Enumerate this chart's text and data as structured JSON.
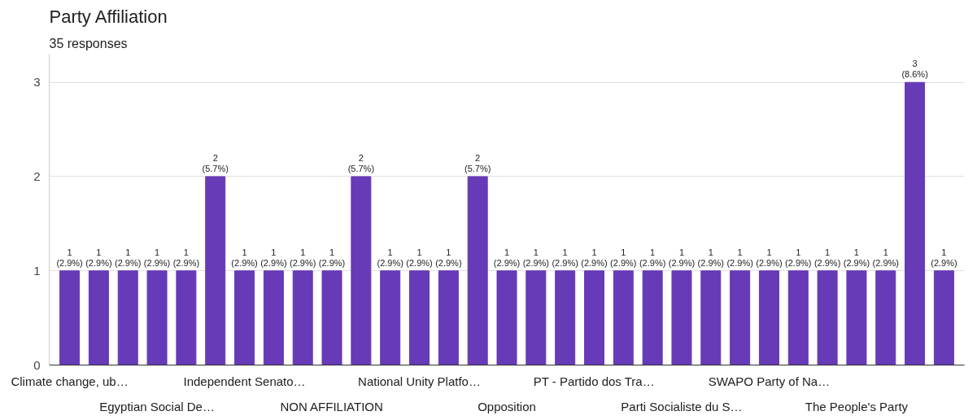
{
  "chart_data": {
    "type": "bar",
    "title": "Party Affiliation",
    "subtitle": "35 responses",
    "categories": [
      "Climate change, ub…",
      null,
      null,
      "Egyptian Social De…",
      null,
      null,
      "Independent Senato…",
      null,
      null,
      "NON AFFILIATION",
      null,
      null,
      "National Unity Platfo…",
      null,
      null,
      "Opposition",
      null,
      null,
      "PT - Partido dos Tra…",
      null,
      null,
      "Parti Socialiste du S…",
      null,
      null,
      "SWAPO Party of Na…",
      null,
      null,
      "The People's Party",
      null,
      null,
      null
    ],
    "values": [
      1,
      1,
      1,
      1,
      1,
      2,
      1,
      1,
      1,
      1,
      2,
      1,
      1,
      1,
      2,
      1,
      1,
      1,
      1,
      1,
      1,
      1,
      1,
      1,
      1,
      1,
      1,
      1,
      1,
      3,
      1
    ],
    "value_labels": [
      "1 (2.9%)",
      "1 (2.9%)",
      "1 (2.9%)",
      "1 (2.9%)",
      "1 (2.9%)",
      "2 (5.7%)",
      "1 (2.9%)",
      "1 (2.9%)",
      "1 (2.9%)",
      "1 (2.9%)",
      "2 (5.7%)",
      "1 (2.9%)",
      "1 (2.9%)",
      "1 (2.9%)",
      "2 (5.7%)",
      "1 (2.9%)",
      "1 (2.9%)",
      "1 (2.9%)",
      "1 (2.9%)",
      "1 (2.9%)",
      "1 (2.9%)",
      "1 (2.9%)",
      "1 (2.9%)",
      "1 (2.9%)",
      "1 (2.9%)",
      "1 (2.9%)",
      "1 (2.9%)",
      "1 (2.9%)",
      "1 (2.9%)",
      "3 (8.6%)",
      "1 (2.9%)"
    ],
    "color": "#673ab7",
    "ylim": [
      0,
      3.3
    ],
    "yticks": [
      0,
      1,
      2,
      3
    ],
    "grid": "y"
  }
}
